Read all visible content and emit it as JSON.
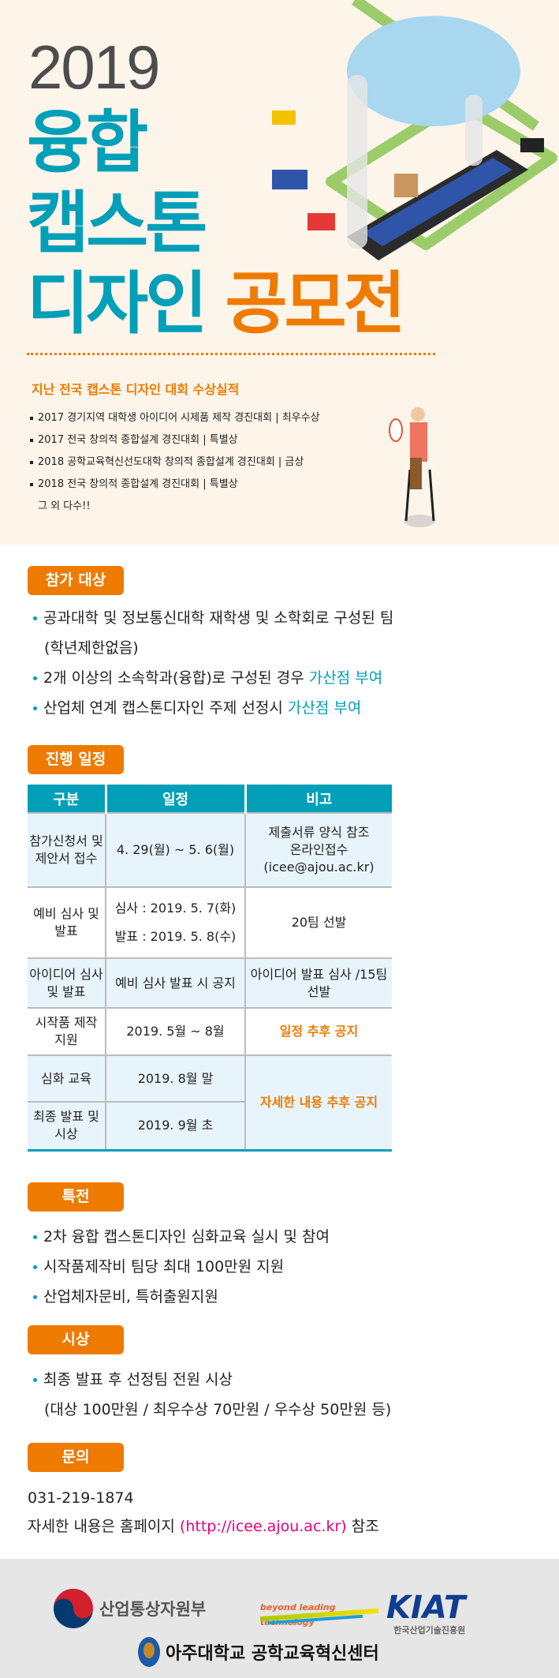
{
  "hero": {
    "year": "2019",
    "line1": "융합",
    "line2": "캡스톤",
    "line3a": "디자인",
    "line3b": "공모전"
  },
  "awards": {
    "title": "지난 전국 캡스톤 디자인 대회 수상실적",
    "items": [
      "2017 경기지역 대학생 아이디어 시제품 제작 경진대회 | 최우수상",
      "2017 전국 창의적 종합설계 경진대회 | 특별상",
      "2018 공학교육혁신선도대학 창의적 종합설계 경진대회 | 금상",
      "2018 전국 창의적 종합설계 경진대회 | 특별상"
    ],
    "more": "그 외 다수!!"
  },
  "eligibility": {
    "badge": "참가 대상",
    "l1": "공과대학 및 정보통신대학 재학생 및 소학회로 구성된 팀",
    "l1b": "(학년제한없음)",
    "l2": "2개 이상의 소속학과(융합)로 구성된 경우 ",
    "l2h": "가산점 부여",
    "l3": "산업체 연계 캡스톤디자인 주제 선정시 ",
    "l3h": "가산점 부여"
  },
  "schedule": {
    "badge": "진행 일정",
    "headers": [
      "구분",
      "일정",
      "비고"
    ],
    "rows": [
      {
        "c1": "참가신청서 및 제안서 접수",
        "c2": "4. 29(월) ~ 5. 6(월)",
        "c3a": "제출서류 양식 참조",
        "c3b": "온라인접수",
        "c3c": "(icee@ajou.ac.kr)"
      },
      {
        "c1": "예비 심사 및 발표",
        "c2a": "심사 : 2019. 5. 7(화)",
        "c2b": "발표 : 2019. 5. 8(수)",
        "c3": "20팀 선발"
      },
      {
        "c1": "아이디어 심사 및 발표",
        "c2": "예비 심사 발표 시 공지",
        "c3": "아이디어 발표 심사 /15팀 선발"
      },
      {
        "c1": "시작품 제작 지원",
        "c2": "2019. 5월 ~ 8월",
        "c3": "일정 추후 공지"
      },
      {
        "c1": "심화 교육",
        "c2": "2019. 8월 말",
        "c3": "자세한 내용 추후 공지"
      },
      {
        "c1": "최종 발표 및 시상",
        "c2": "2019. 9월 초"
      }
    ]
  },
  "benefits": {
    "badge": "특전",
    "items": [
      "2차 융합 캡스톤디자인 심화교육 실시 및 참여",
      "시작품제작비 팀당 최대 100만원 지원",
      "산업체자문비, 특허출원지원"
    ]
  },
  "prizes": {
    "badge": "시상",
    "l1": "최종 발표 후 선정팀 전원 시상",
    "l2": "(대상 100만원 / 최우수상 70만원 / 우수상 50만원 등)"
  },
  "contact": {
    "badge": "문의",
    "phone": "031-219-1874",
    "pre": "자세한 내용은 홈페이지 ",
    "url": "(http://icee.ajou.ac.kr)",
    "post": " 참조"
  },
  "footer": {
    "motie": "산업통상자원부",
    "kiat_slogan": "beyond leading technology",
    "kiat": "KIAT",
    "kiat_sub": "한국산업기술진흥원",
    "ajou": "아주대학교 공학교육혁신센터"
  },
  "colors": {
    "teal": "#029fb8",
    "orange": "#ee7b00",
    "pink": "#e4007f"
  }
}
